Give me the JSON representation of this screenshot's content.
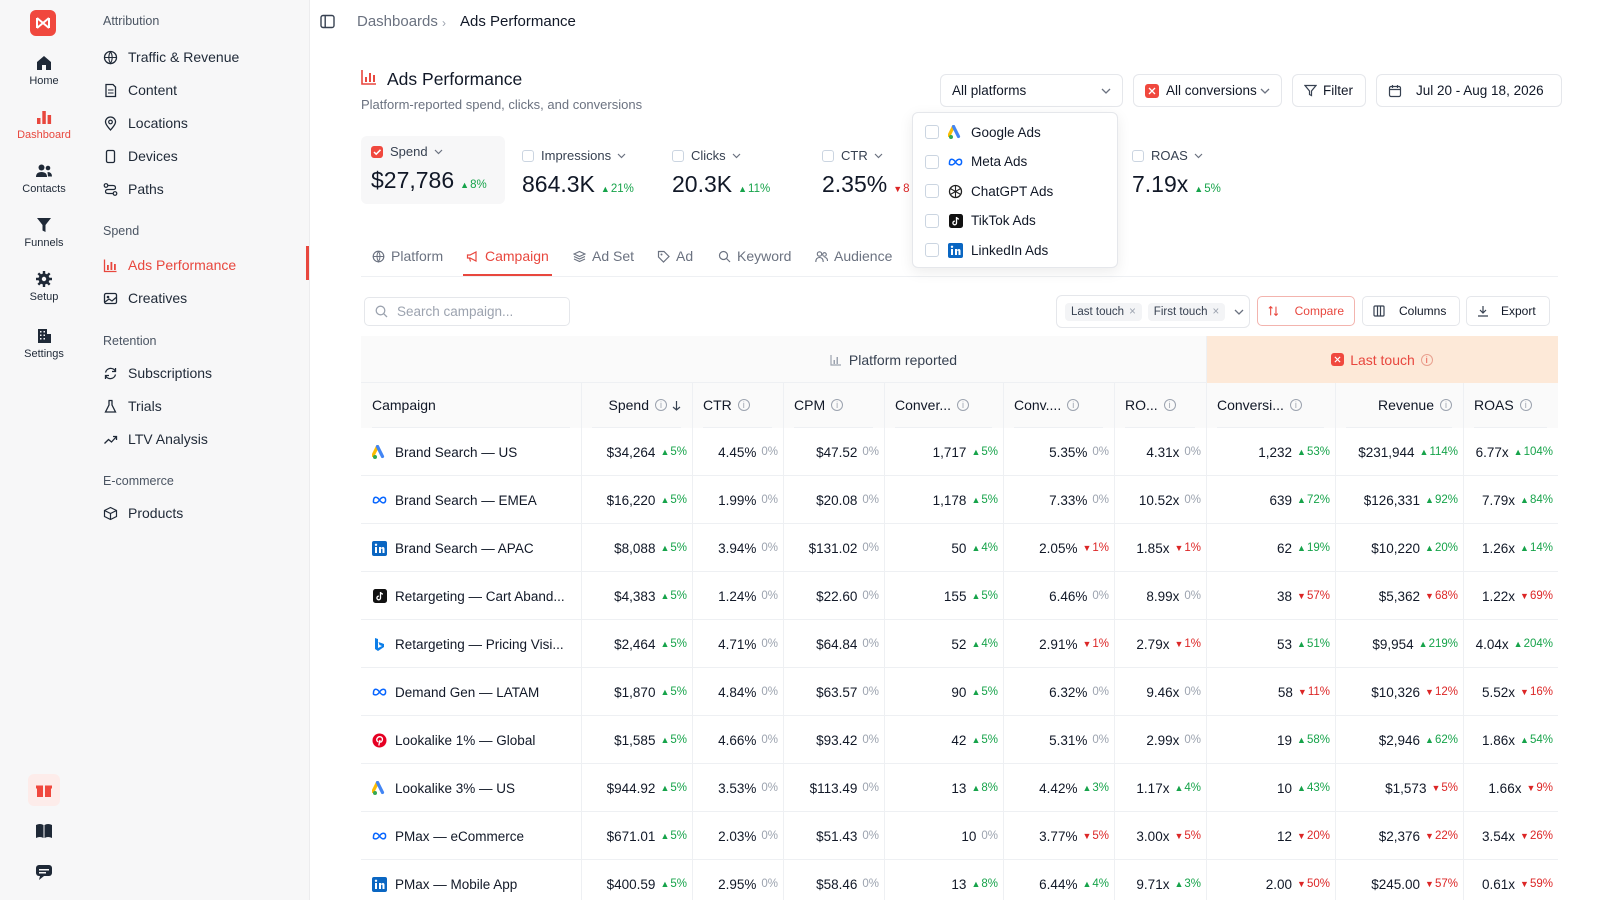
{
  "rail": {
    "items": [
      {
        "label": "Home",
        "icon": "home-icon"
      },
      {
        "label": "Dashboard",
        "icon": "bar-chart-icon",
        "active": true
      },
      {
        "label": "Contacts",
        "icon": "users-icon"
      },
      {
        "label": "Funnels",
        "icon": "funnel-icon"
      },
      {
        "label": "Setup",
        "icon": "gear-icon"
      },
      {
        "label": "Settings",
        "icon": "building-icon"
      }
    ],
    "bottom": [
      "gift-icon",
      "book-icon",
      "chat-icon"
    ]
  },
  "nav": {
    "groups": [
      {
        "title": "Attribution",
        "items": [
          "Traffic & Revenue",
          "Content",
          "Locations",
          "Devices",
          "Paths"
        ]
      },
      {
        "title": "Spend",
        "items": [
          "Ads Performance",
          "Creatives"
        ]
      },
      {
        "title": "Retention",
        "items": [
          "Subscriptions",
          "Trials",
          "LTV Analysis"
        ]
      },
      {
        "title": "E-commerce",
        "items": [
          "Products"
        ]
      }
    ],
    "active": "Ads Performance"
  },
  "breadcrumb": {
    "parent": "Dashboards",
    "current": "Ads Performance"
  },
  "header": {
    "title": "Ads Performance",
    "subtitle": "Platform-reported spend, clicks, and conversions",
    "platform_select": "All platforms",
    "conversion_select": "All conversions",
    "filter_label": "Filter",
    "date_range": "Jul 20 - Aug 18, 2026"
  },
  "metrics": [
    {
      "label": "Spend",
      "value": "$27,786",
      "delta": "8%",
      "dir": "up",
      "checked": true
    },
    {
      "label": "Impressions",
      "value": "864.3K",
      "delta": "21%",
      "dir": "up",
      "checked": false
    },
    {
      "label": "Clicks",
      "value": "20.3K",
      "delta": "11%",
      "dir": "up",
      "checked": false
    },
    {
      "label": "CTR",
      "value": "2.35%",
      "delta": "8",
      "dir": "dn",
      "checked": false
    },
    {
      "label": "ROAS",
      "value": "7.19x",
      "delta": "5%",
      "dir": "up",
      "checked": false
    }
  ],
  "platform_dropdown": [
    {
      "label": "Google Ads",
      "icon": "google-ads-icon"
    },
    {
      "label": "Meta Ads",
      "icon": "meta-icon"
    },
    {
      "label": "ChatGPT Ads",
      "icon": "chatgpt-icon"
    },
    {
      "label": "TikTok Ads",
      "icon": "tiktok-icon"
    },
    {
      "label": "LinkedIn Ads",
      "icon": "linkedin-icon"
    }
  ],
  "tabs": [
    {
      "label": "Platform",
      "icon": "globe-icon"
    },
    {
      "label": "Campaign",
      "icon": "megaphone-icon",
      "active": true
    },
    {
      "label": "Ad Set",
      "icon": "layers-icon"
    },
    {
      "label": "Ad",
      "icon": "tag-icon"
    },
    {
      "label": "Keyword",
      "icon": "search-icon"
    },
    {
      "label": "Audience",
      "icon": "users-icon"
    }
  ],
  "toolbar": {
    "search_placeholder": "Search campaign...",
    "chips": [
      "Last touch",
      "First touch"
    ],
    "compare": "Compare",
    "columns": "Columns",
    "export": "Export"
  },
  "table": {
    "group_platform": "Platform reported",
    "group_last_touch": "Last touch",
    "columns": [
      "Campaign",
      "Spend",
      "CTR",
      "CPM",
      "Conver...",
      "Conv....",
      "RO...",
      "Conversi...",
      "Revenue",
      "ROAS"
    ],
    "rows": [
      {
        "icon": "google-ads-icon",
        "name": "Brand Search — US",
        "cells": [
          [
            "$34,264",
            "5%",
            "up"
          ],
          [
            "4.45%",
            "0%",
            "zero"
          ],
          [
            "$47.52",
            "0%",
            "zero"
          ],
          [
            "1,717",
            "5%",
            "up"
          ],
          [
            "5.35%",
            "0%",
            "zero"
          ],
          [
            "4.31x",
            "0%",
            "zero"
          ],
          [
            "1,232",
            "53%",
            "up"
          ],
          [
            "$231,944",
            "114%",
            "up"
          ],
          [
            "6.77x",
            "104%",
            "up"
          ]
        ]
      },
      {
        "icon": "meta-icon",
        "name": "Brand Search — EMEA",
        "cells": [
          [
            "$16,220",
            "5%",
            "up"
          ],
          [
            "1.99%",
            "0%",
            "zero"
          ],
          [
            "$20.08",
            "0%",
            "zero"
          ],
          [
            "1,178",
            "5%",
            "up"
          ],
          [
            "7.33%",
            "0%",
            "zero"
          ],
          [
            "10.52x",
            "0%",
            "zero"
          ],
          [
            "639",
            "72%",
            "up"
          ],
          [
            "$126,331",
            "92%",
            "up"
          ],
          [
            "7.79x",
            "84%",
            "up"
          ]
        ]
      },
      {
        "icon": "linkedin-icon",
        "name": "Brand Search — APAC",
        "cells": [
          [
            "$8,088",
            "5%",
            "up"
          ],
          [
            "3.94%",
            "0%",
            "zero"
          ],
          [
            "$131.02",
            "0%",
            "zero"
          ],
          [
            "50",
            "4%",
            "up"
          ],
          [
            "2.05%",
            "1%",
            "dn"
          ],
          [
            "1.85x",
            "1%",
            "dn"
          ],
          [
            "62",
            "19%",
            "up"
          ],
          [
            "$10,220",
            "20%",
            "up"
          ],
          [
            "1.26x",
            "14%",
            "up"
          ]
        ]
      },
      {
        "icon": "tiktok-icon",
        "name": "Retargeting — Cart Aband...",
        "cells": [
          [
            "$4,383",
            "5%",
            "up"
          ],
          [
            "1.24%",
            "0%",
            "zero"
          ],
          [
            "$22.60",
            "0%",
            "zero"
          ],
          [
            "155",
            "5%",
            "up"
          ],
          [
            "6.46%",
            "0%",
            "zero"
          ],
          [
            "8.99x",
            "0%",
            "zero"
          ],
          [
            "38",
            "57%",
            "dn"
          ],
          [
            "$5,362",
            "68%",
            "dn"
          ],
          [
            "1.22x",
            "69%",
            "dn"
          ]
        ]
      },
      {
        "icon": "bing-icon",
        "name": "Retargeting — Pricing Visi...",
        "cells": [
          [
            "$2,464",
            "5%",
            "up"
          ],
          [
            "4.71%",
            "0%",
            "zero"
          ],
          [
            "$64.84",
            "0%",
            "zero"
          ],
          [
            "52",
            "4%",
            "up"
          ],
          [
            "2.91%",
            "1%",
            "dn"
          ],
          [
            "2.79x",
            "1%",
            "dn"
          ],
          [
            "53",
            "51%",
            "up"
          ],
          [
            "$9,954",
            "219%",
            "up"
          ],
          [
            "4.04x",
            "204%",
            "up"
          ]
        ]
      },
      {
        "icon": "meta-icon",
        "name": "Demand Gen — LATAM",
        "cells": [
          [
            "$1,870",
            "5%",
            "up"
          ],
          [
            "4.84%",
            "0%",
            "zero"
          ],
          [
            "$63.57",
            "0%",
            "zero"
          ],
          [
            "90",
            "5%",
            "up"
          ],
          [
            "6.32%",
            "0%",
            "zero"
          ],
          [
            "9.46x",
            "0%",
            "zero"
          ],
          [
            "58",
            "11%",
            "dn"
          ],
          [
            "$10,326",
            "12%",
            "dn"
          ],
          [
            "5.52x",
            "16%",
            "dn"
          ]
        ]
      },
      {
        "icon": "pinterest-icon",
        "name": "Lookalike 1% — Global",
        "cells": [
          [
            "$1,585",
            "5%",
            "up"
          ],
          [
            "4.66%",
            "0%",
            "zero"
          ],
          [
            "$93.42",
            "0%",
            "zero"
          ],
          [
            "42",
            "5%",
            "up"
          ],
          [
            "5.31%",
            "0%",
            "zero"
          ],
          [
            "2.99x",
            "0%",
            "zero"
          ],
          [
            "19",
            "58%",
            "up"
          ],
          [
            "$2,946",
            "62%",
            "up"
          ],
          [
            "1.86x",
            "54%",
            "up"
          ]
        ]
      },
      {
        "icon": "google-ads-icon",
        "name": "Lookalike 3% — US",
        "cells": [
          [
            "$944.92",
            "5%",
            "up"
          ],
          [
            "3.53%",
            "0%",
            "zero"
          ],
          [
            "$113.49",
            "0%",
            "zero"
          ],
          [
            "13",
            "8%",
            "up"
          ],
          [
            "4.42%",
            "3%",
            "up"
          ],
          [
            "1.17x",
            "4%",
            "up"
          ],
          [
            "10",
            "43%",
            "up"
          ],
          [
            "$1,573",
            "5%",
            "dn"
          ],
          [
            "1.66x",
            "9%",
            "dn"
          ]
        ]
      },
      {
        "icon": "meta-icon",
        "name": "PMax — eCommerce",
        "cells": [
          [
            "$671.01",
            "5%",
            "up"
          ],
          [
            "2.03%",
            "0%",
            "zero"
          ],
          [
            "$51.43",
            "0%",
            "zero"
          ],
          [
            "10",
            "0%",
            "zero"
          ],
          [
            "3.77%",
            "5%",
            "dn"
          ],
          [
            "3.00x",
            "5%",
            "dn"
          ],
          [
            "12",
            "20%",
            "dn"
          ],
          [
            "$2,376",
            "22%",
            "dn"
          ],
          [
            "3.54x",
            "26%",
            "dn"
          ]
        ]
      },
      {
        "icon": "linkedin-icon",
        "name": "PMax — Mobile App",
        "cells": [
          [
            "$400.59",
            "5%",
            "up"
          ],
          [
            "2.95%",
            "0%",
            "zero"
          ],
          [
            "$58.46",
            "0%",
            "zero"
          ],
          [
            "13",
            "8%",
            "up"
          ],
          [
            "6.44%",
            "4%",
            "up"
          ],
          [
            "9.71x",
            "3%",
            "up"
          ],
          [
            "2.00",
            "50%",
            "dn"
          ],
          [
            "$245.00",
            "57%",
            "dn"
          ],
          [
            "0.61x",
            "59%",
            "dn"
          ]
        ]
      }
    ]
  }
}
